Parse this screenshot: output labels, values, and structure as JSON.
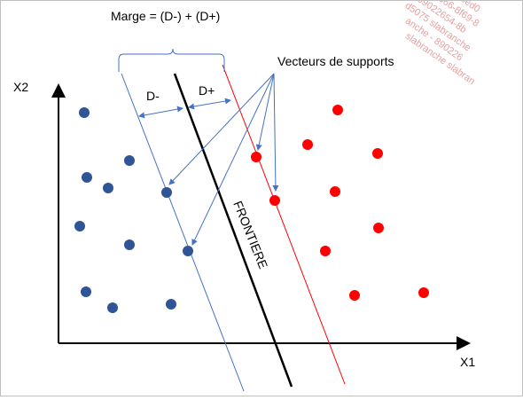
{
  "labels": {
    "marge": "Marge = (D-) + (D+)",
    "d_minus": "D-",
    "d_plus": "D+",
    "vecteurs": "Vecteurs de supports",
    "frontiere": "FRONTIERE",
    "axis_x": "X1",
    "axis_y": "X2"
  },
  "watermark": [
    "ab93bed0",
    "ab666-8f69-8",
    "89022654-8b",
    "d5075 slabranche",
    "anche - 890226",
    "slabranche slabran"
  ],
  "colors": {
    "blue": "#2f5597",
    "red": "#ff0000",
    "arrow": "#4472c4",
    "axis": "#000000",
    "frontier": "#000000"
  }
}
